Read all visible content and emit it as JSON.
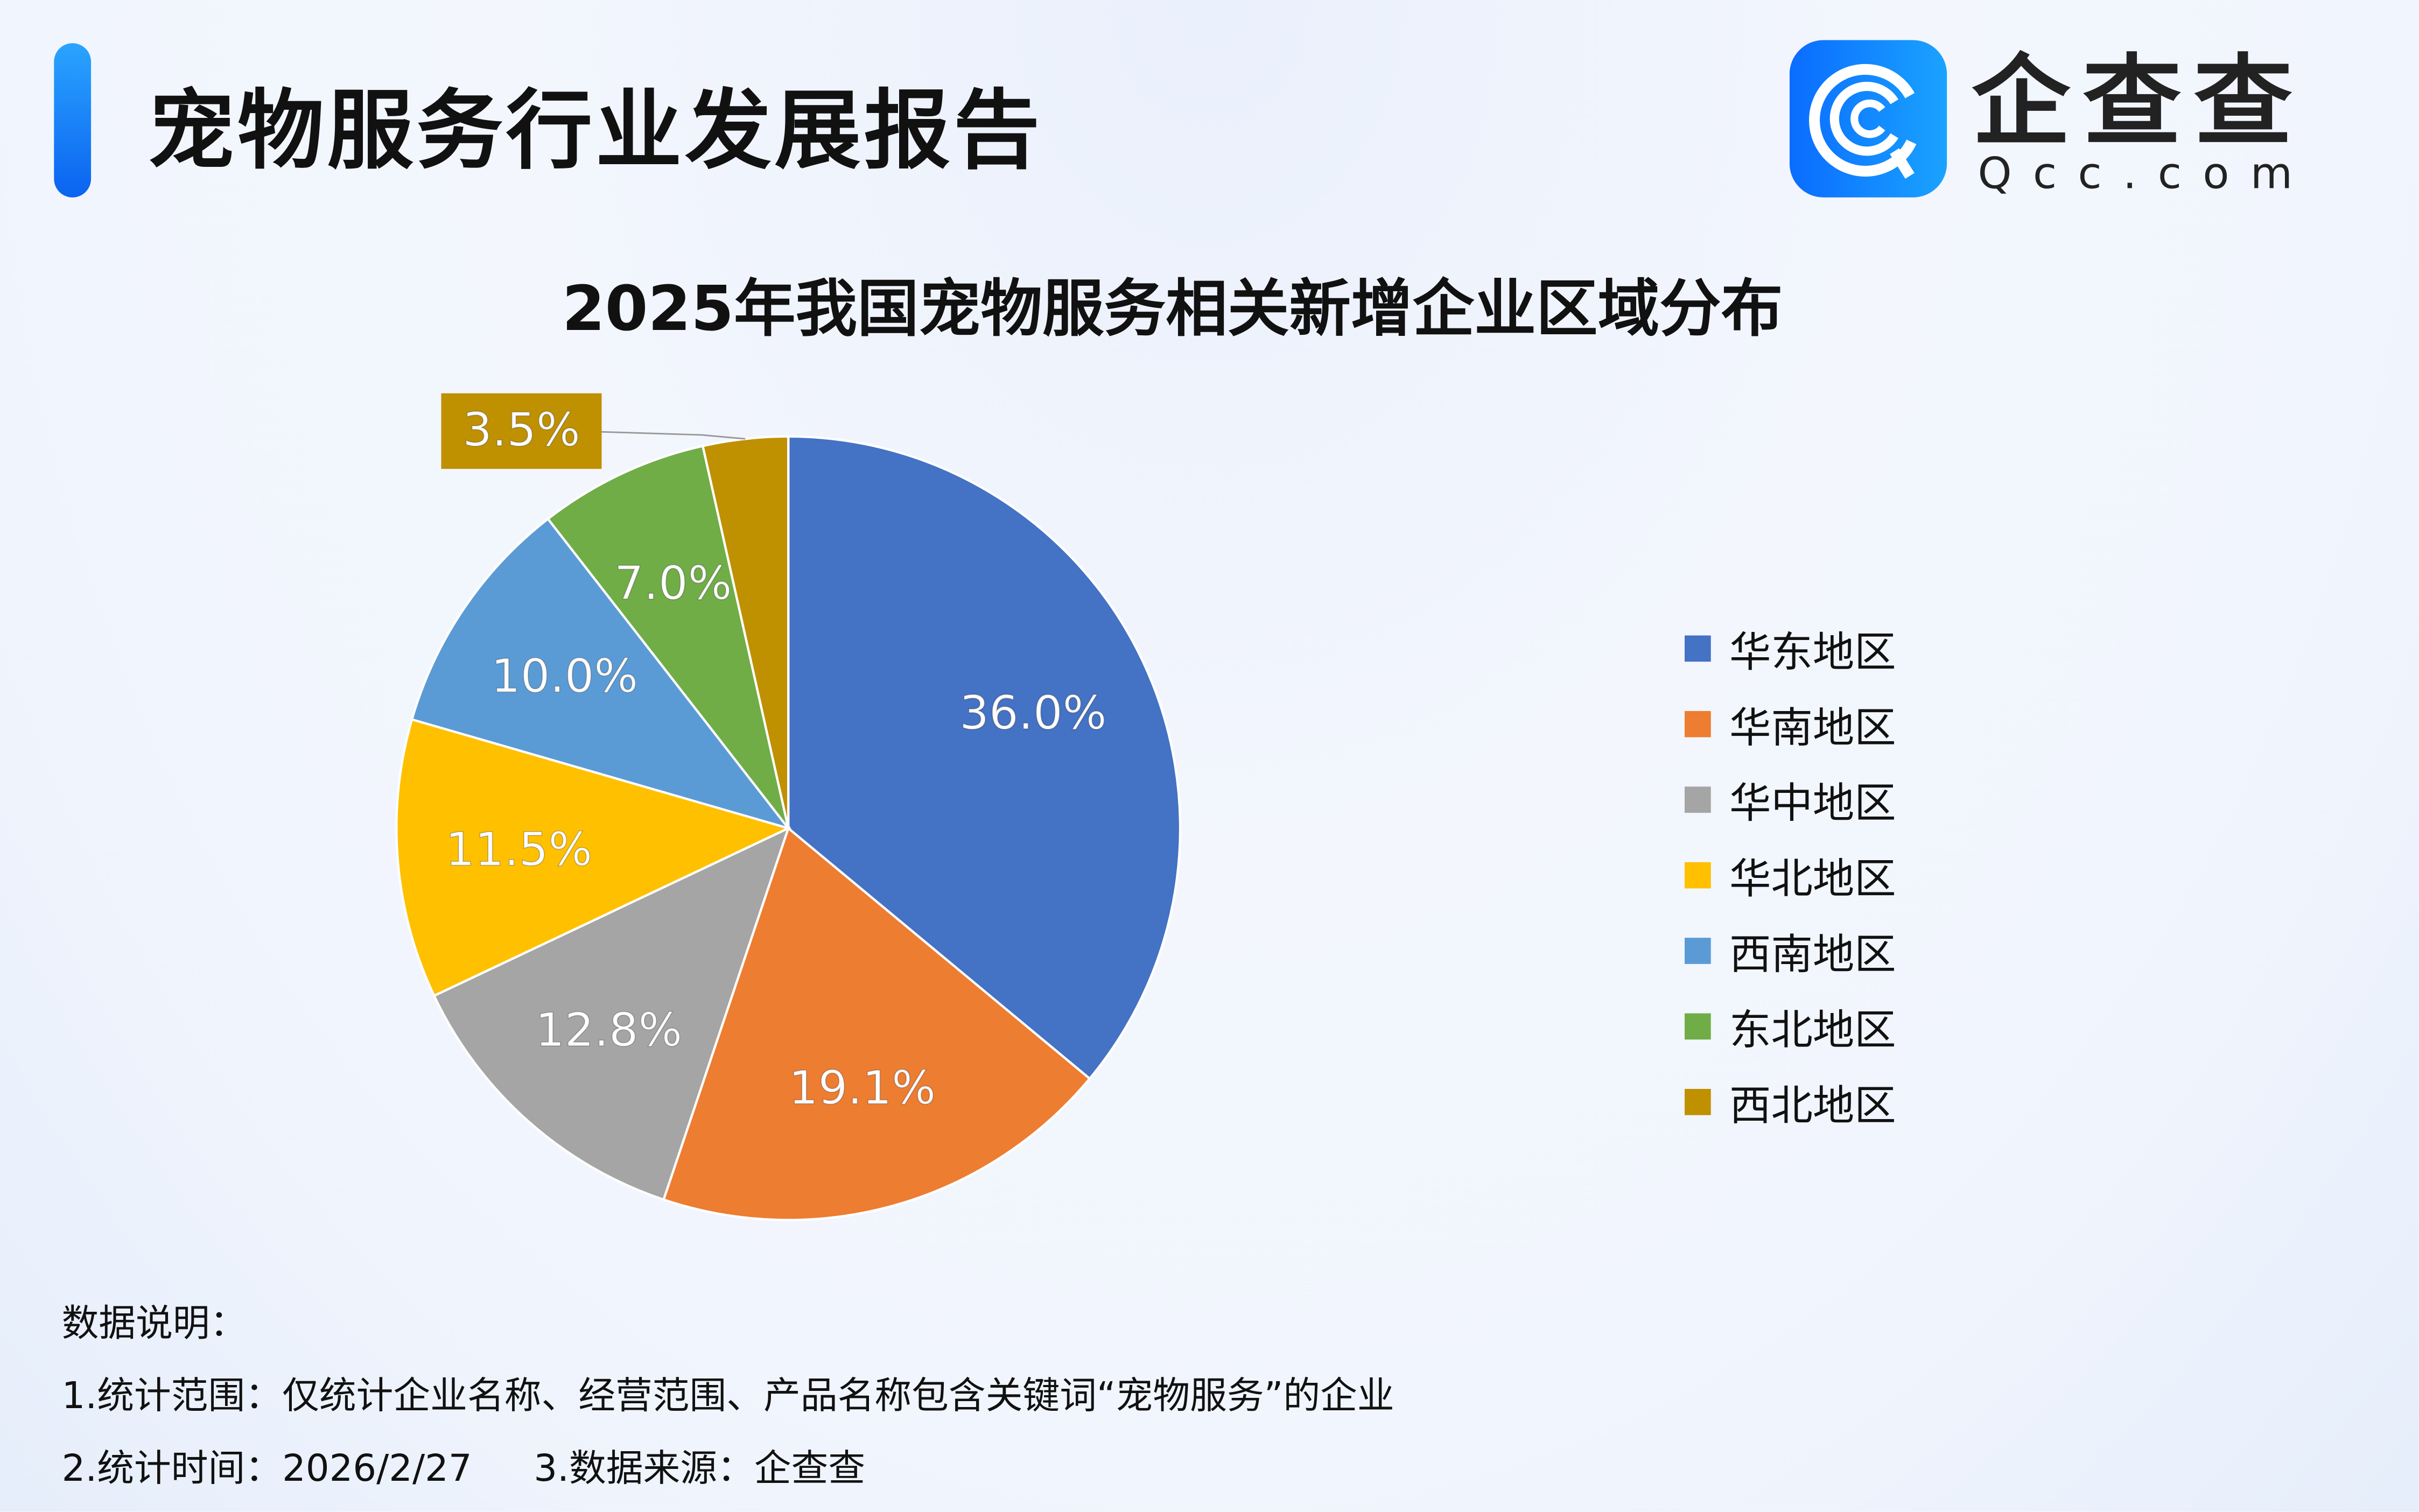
{
  "header": {
    "title": "宠物服务行业发展报告",
    "logo_text": "企查查",
    "logo_domain": "Qcc.com",
    "accent": "#1677ff"
  },
  "chart_data": {
    "type": "pie",
    "title": "2025年我国宠物服务相关新增企业区域分布",
    "categories": [
      "华东地区",
      "华南地区",
      "华中地区",
      "华北地区",
      "西南地区",
      "东北地区",
      "西北地区"
    ],
    "values": [
      36.0,
      19.1,
      12.8,
      11.5,
      10.0,
      7.0,
      3.5
    ],
    "labels": [
      "36.0%",
      "19.1%",
      "12.8%",
      "11.5%",
      "10.0%",
      "7.0%",
      "3.5%"
    ],
    "colors": [
      "#4472C4",
      "#ED7D31",
      "#A5A5A5",
      "#FFC000",
      "#5B9BD5",
      "#70AD47",
      "#BF9000"
    ],
    "start": "top, clockwise",
    "legend_position": "right"
  },
  "notes": {
    "heading": "数据说明：",
    "scope": "1.统计范围：仅统计企业名称、经营范围、产品名称包含关键词“宠物服务”的企业",
    "time": "2.统计时间：2026/2/27",
    "source": "3.数据来源：企查查"
  }
}
